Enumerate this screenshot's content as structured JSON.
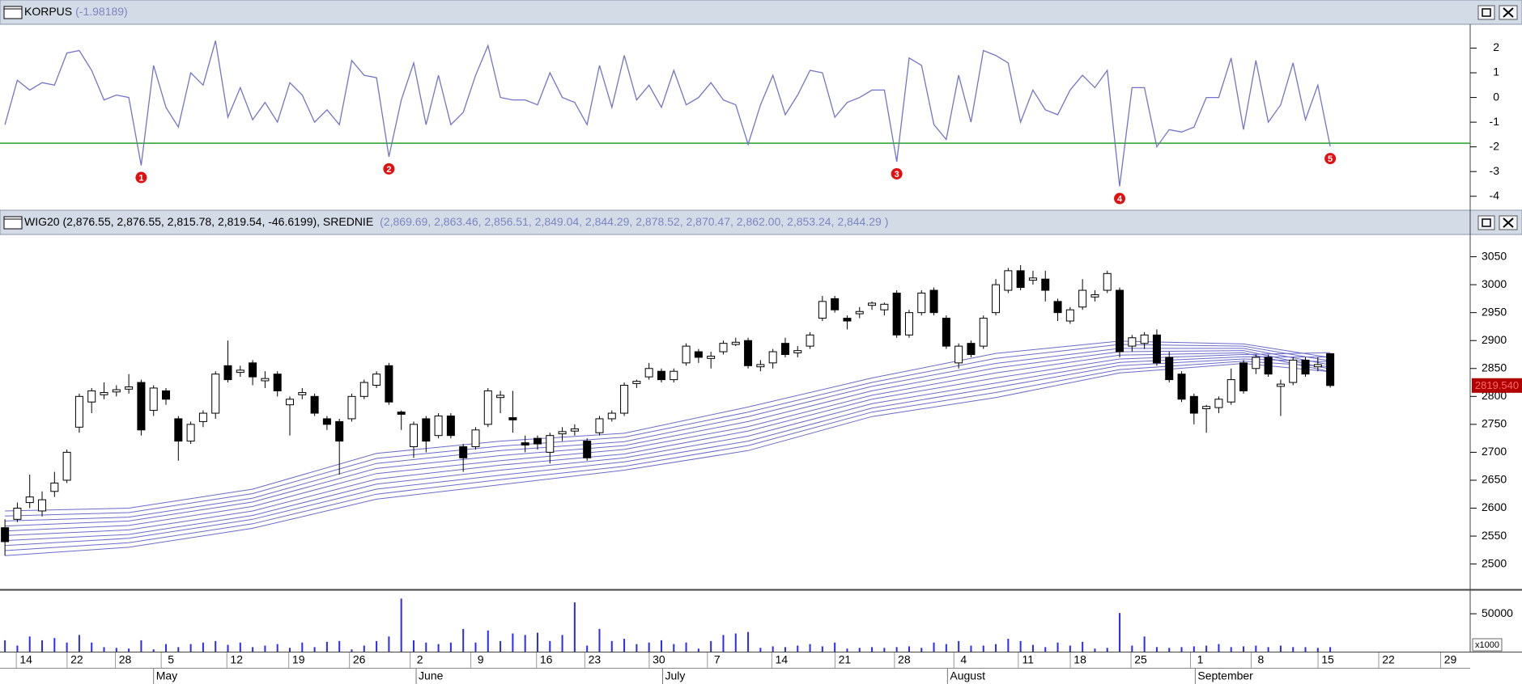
{
  "chart_data": [
    {
      "type": "line",
      "title": "KORPUS",
      "subtitle": "(-1.98189)",
      "color": "#7373cc",
      "xlim": [
        -0.4,
        118.3
      ],
      "ylim": [
        -4.5,
        2.9
      ],
      "yticks": [
        -4,
        -3,
        -2,
        -1,
        0,
        1,
        2
      ],
      "threshold": -1.85,
      "threshold_color": "#22a022",
      "values": [
        -1.1,
        0.7,
        0.3,
        0.6,
        0.5,
        1.8,
        1.9,
        1.1,
        -0.1,
        0.1,
        0.0,
        -2.75,
        1.3,
        -0.4,
        -1.2,
        1.0,
        0.5,
        2.3,
        -0.8,
        0.4,
        -0.9,
        -0.2,
        -1.0,
        0.6,
        0.1,
        -1.0,
        -0.5,
        -1.1,
        1.5,
        0.9,
        0.8,
        -2.4,
        -0.1,
        1.4,
        -1.1,
        0.9,
        -1.1,
        -0.6,
        0.9,
        2.1,
        0.0,
        -0.1,
        -0.1,
        -0.3,
        1.0,
        0.0,
        -0.2,
        -1.1,
        1.3,
        -0.4,
        1.7,
        -0.1,
        0.5,
        -0.4,
        1.1,
        -0.3,
        0.0,
        0.6,
        -0.1,
        -0.3,
        -1.9,
        -0.3,
        0.9,
        -0.7,
        0.1,
        1.1,
        1.0,
        -0.8,
        -0.2,
        0.0,
        0.3,
        0.3,
        -2.6,
        1.6,
        1.3,
        -1.1,
        -1.7,
        0.9,
        -1.0,
        1.9,
        1.7,
        1.4,
        -1.0,
        0.3,
        -0.5,
        -0.7,
        0.3,
        0.9,
        0.4,
        1.1,
        -3.6,
        0.4,
        0.4,
        -2.0,
        -1.3,
        -1.4,
        -1.2,
        0.0,
        0.0,
        1.6,
        -1.3,
        1.5,
        -1.0,
        -0.3,
        1.4,
        -0.9,
        0.5,
        -1.98189
      ],
      "annotations": [
        {
          "x": 11,
          "text": "1"
        },
        {
          "x": 31,
          "text": "2"
        },
        {
          "x": 72,
          "text": "3"
        },
        {
          "x": 90,
          "text": "4"
        },
        {
          "x": 107,
          "text": "5"
        }
      ]
    },
    {
      "type": "candlestick",
      "title": "WIG20 (2,876.55, 2,876.55, 2,815.78, 2,819.54, -46.6199), SREDNIE",
      "subtitle": "(2,869.69, 2,863.46, 2,856.51, 2,849.04, 2,844.29, 2,878.52, 2,870.47, 2,862.00, 2,853.24, 2,844.29 )",
      "xlim": [
        -0.4,
        118.3
      ],
      "ylim": [
        2456,
        3087
      ],
      "yticks": [
        2500,
        2550,
        2600,
        2650,
        2700,
        2750,
        2800,
        2850,
        2900,
        2950,
        3000,
        3050
      ],
      "open": [
        2565,
        2580,
        2610,
        2595,
        2630,
        2650,
        2745,
        2790,
        2803,
        2808,
        2813,
        2825,
        2775,
        2810,
        2760,
        2720,
        2755,
        2770,
        2855,
        2843,
        2860,
        2828,
        2840,
        2785,
        2803,
        2800,
        2760,
        2755,
        2760,
        2800,
        2820,
        2855,
        2772,
        2710,
        2760,
        2730,
        2765,
        2710,
        2710,
        2750,
        2798,
        2762,
        2717,
        2725,
        2700,
        2733,
        2738,
        2720,
        2735,
        2760,
        2770,
        2823,
        2835,
        2845,
        2830,
        2860,
        2880,
        2868,
        2880,
        2893,
        2900,
        2853,
        2860,
        2895,
        2878,
        2890,
        2940,
        2975,
        2940,
        2948,
        2963,
        2955,
        2985,
        2910,
        2950,
        2990,
        2940,
        2860,
        2895,
        2890,
        2950,
        2990,
        3025,
        3008,
        3010,
        2970,
        2935,
        2960,
        2978,
        2990,
        2990,
        2890,
        2895,
        2910,
        2870,
        2840,
        2800,
        2778,
        2780,
        2790,
        2860,
        2850,
        2870,
        2818,
        2825,
        2865,
        2853,
        2876.55
      ],
      "high": [
        2580,
        2610,
        2660,
        2630,
        2665,
        2705,
        2805,
        2815,
        2825,
        2820,
        2840,
        2830,
        2820,
        2815,
        2765,
        2755,
        2775,
        2845,
        2900,
        2855,
        2865,
        2845,
        2845,
        2800,
        2815,
        2805,
        2765,
        2760,
        2805,
        2830,
        2845,
        2860,
        2775,
        2755,
        2765,
        2770,
        2770,
        2715,
        2745,
        2815,
        2810,
        2810,
        2730,
        2730,
        2735,
        2745,
        2750,
        2725,
        2765,
        2775,
        2825,
        2830,
        2860,
        2850,
        2850,
        2895,
        2885,
        2880,
        2900,
        2905,
        2905,
        2865,
        2885,
        2905,
        2890,
        2915,
        2980,
        2980,
        2945,
        2960,
        2970,
        2968,
        2990,
        2955,
        2990,
        2995,
        2945,
        2895,
        2900,
        2945,
        3010,
        3030,
        3035,
        3025,
        3025,
        2975,
        2960,
        3010,
        2990,
        3025,
        2995,
        2910,
        2915,
        2920,
        2880,
        2845,
        2805,
        2785,
        2800,
        2850,
        2865,
        2875,
        2875,
        2830,
        2870,
        2870,
        2870,
        2876.55
      ],
      "low": [
        2515,
        2575,
        2600,
        2585,
        2620,
        2645,
        2735,
        2770,
        2795,
        2800,
        2805,
        2730,
        2765,
        2785,
        2685,
        2715,
        2745,
        2760,
        2825,
        2835,
        2820,
        2815,
        2800,
        2730,
        2795,
        2765,
        2740,
        2660,
        2755,
        2795,
        2815,
        2785,
        2740,
        2690,
        2700,
        2725,
        2725,
        2665,
        2705,
        2745,
        2770,
        2735,
        2700,
        2705,
        2680,
        2720,
        2730,
        2685,
        2730,
        2755,
        2765,
        2815,
        2830,
        2825,
        2825,
        2855,
        2860,
        2850,
        2875,
        2890,
        2850,
        2845,
        2850,
        2870,
        2870,
        2885,
        2935,
        2950,
        2920,
        2940,
        2955,
        2945,
        2905,
        2905,
        2945,
        2945,
        2885,
        2850,
        2870,
        2885,
        2945,
        2985,
        2990,
        3000,
        2970,
        2935,
        2930,
        2955,
        2970,
        2985,
        2870,
        2880,
        2885,
        2855,
        2825,
        2790,
        2750,
        2735,
        2770,
        2785,
        2805,
        2840,
        2835,
        2765,
        2820,
        2835,
        2845,
        2815.78
      ],
      "close": [
        2540,
        2600,
        2620,
        2615,
        2645,
        2700,
        2800,
        2810,
        2807,
        2812,
        2817,
        2740,
        2815,
        2795,
        2720,
        2750,
        2770,
        2840,
        2830,
        2847,
        2835,
        2832,
        2810,
        2795,
        2807,
        2770,
        2750,
        2720,
        2800,
        2825,
        2840,
        2790,
        2768,
        2750,
        2720,
        2765,
        2730,
        2690,
        2740,
        2810,
        2802,
        2758,
        2713,
        2715,
        2730,
        2737,
        2742,
        2690,
        2760,
        2770,
        2820,
        2827,
        2850,
        2830,
        2845,
        2890,
        2870,
        2872,
        2895,
        2897,
        2855,
        2857,
        2880,
        2875,
        2882,
        2910,
        2970,
        2955,
        2935,
        2952,
        2967,
        2965,
        2910,
        2950,
        2985,
        2950,
        2890,
        2890,
        2875,
        2940,
        3000,
        3025,
        2995,
        3012,
        2990,
        2950,
        2955,
        2990,
        2982,
        3020,
        2880,
        2905,
        2910,
        2860,
        2830,
        2795,
        2770,
        2782,
        2795,
        2830,
        2810,
        2870,
        2840,
        2822,
        2865,
        2840,
        2857,
        2819.54
      ],
      "ma_x": [
        0,
        10,
        20,
        30,
        40,
        50,
        60,
        70,
        80,
        90,
        100,
        107
      ],
      "ma_color": "#6a6acc",
      "series": [
        {
          "values": [
            2595,
            2600,
            2634,
            2698,
            2720,
            2734,
            2781,
            2833,
            2877,
            2899,
            2894,
            2869.69
          ]
        },
        {
          "values": [
            2586,
            2592,
            2626,
            2689,
            2711,
            2727,
            2772,
            2825,
            2868,
            2893,
            2890,
            2863.46
          ]
        },
        {
          "values": [
            2577,
            2584,
            2618,
            2680,
            2703,
            2719,
            2764,
            2818,
            2859,
            2886,
            2886,
            2856.51
          ]
        },
        {
          "values": [
            2568,
            2577,
            2611,
            2671,
            2694,
            2712,
            2755,
            2810,
            2851,
            2880,
            2882,
            2849.04
          ]
        },
        {
          "values": [
            2559,
            2569,
            2603,
            2662,
            2685,
            2705,
            2746,
            2802,
            2842,
            2874,
            2878,
            2844.29
          ]
        },
        {
          "values": [
            2551,
            2561,
            2595,
            2652,
            2677,
            2697,
            2738,
            2795,
            2833,
            2867,
            2875,
            2878.52
          ]
        },
        {
          "values": [
            2542,
            2553,
            2587,
            2643,
            2668,
            2690,
            2729,
            2787,
            2824,
            2861,
            2871,
            2870.47
          ]
        },
        {
          "values": [
            2533,
            2546,
            2580,
            2634,
            2659,
            2683,
            2720,
            2779,
            2816,
            2855,
            2867,
            2862
          ]
        },
        {
          "values": [
            2524,
            2538,
            2572,
            2625,
            2651,
            2675,
            2712,
            2772,
            2807,
            2848,
            2863,
            2853.24
          ]
        },
        {
          "values": [
            2515,
            2530,
            2564,
            2616,
            2642,
            2668,
            2703,
            2764,
            2798,
            2842,
            2859,
            2844.29
          ]
        }
      ],
      "price_marker": {
        "value": 2819.54,
        "label": "2819.540"
      }
    },
    {
      "type": "bar",
      "color": "#2a2aff",
      "unit_label": "x1000",
      "xlim": [
        -0.4,
        118.3
      ],
      "ylim": [
        0,
        80000
      ],
      "yticks": [
        50000
      ],
      "values": [
        15000,
        8000,
        20000,
        15000,
        18000,
        12000,
        22000,
        12000,
        6000,
        5000,
        4000,
        15000,
        3000,
        10000,
        6000,
        10000,
        12000,
        14000,
        9000,
        12000,
        6000,
        8000,
        10000,
        5000,
        12000,
        6000,
        13000,
        14000,
        3000,
        8000,
        14000,
        20000,
        70000,
        15000,
        12000,
        10000,
        12000,
        30000,
        12000,
        28000,
        14000,
        24000,
        22000,
        25000,
        14000,
        22000,
        65000,
        8000,
        30000,
        14000,
        17000,
        10000,
        12000,
        15000,
        10000,
        12000,
        4000,
        14000,
        22000,
        24000,
        26000,
        5000,
        7000,
        6000,
        8000,
        10000,
        7000,
        12000,
        4000,
        5000,
        6000,
        5000,
        6000,
        7000,
        5000,
        12000,
        10000,
        14000,
        8000,
        8000,
        10000,
        17000,
        14000,
        9000,
        6000,
        12000,
        8000,
        13000,
        4000,
        5000,
        51000,
        8000,
        20000,
        6000,
        5000,
        6000,
        7000,
        8000,
        10000,
        6000,
        7000,
        8000,
        6000,
        8000,
        6000,
        6000,
        5000,
        6000
      ],
      "xticks": [
        {
          "value": 1.7,
          "label": "14"
        },
        {
          "value": 5.8,
          "label": "22"
        },
        {
          "value": 9.7,
          "label": "28"
        },
        {
          "value": 13.4,
          "label": "5"
        },
        {
          "value": 18.7,
          "label": "12"
        },
        {
          "value": 23.7,
          "label": "19"
        },
        {
          "value": 28.6,
          "label": "26"
        },
        {
          "value": 33.5,
          "label": "2"
        },
        {
          "value": 38.4,
          "label": "9"
        },
        {
          "value": 43.7,
          "label": "16"
        },
        {
          "value": 47.6,
          "label": "23"
        },
        {
          "value": 52.8,
          "label": "30"
        },
        {
          "value": 57.5,
          "label": "7"
        },
        {
          "value": 62.7,
          "label": "14"
        },
        {
          "value": 67.8,
          "label": "21"
        },
        {
          "value": 72.6,
          "label": "28"
        },
        {
          "value": 77.4,
          "label": "4"
        },
        {
          "value": 82.6,
          "label": "11"
        },
        {
          "value": 86.8,
          "label": "18"
        },
        {
          "value": 91.7,
          "label": "25"
        },
        {
          "value": 96.5,
          "label": "1"
        },
        {
          "value": 101.4,
          "label": "8"
        },
        {
          "value": 106.8,
          "label": "15"
        },
        {
          "value": 111.7,
          "label": "22"
        },
        {
          "value": 116.7,
          "label": "29"
        }
      ],
      "month_ticks": [
        {
          "value": 12.0,
          "label": "May"
        },
        {
          "value": 33.2,
          "label": "June"
        },
        {
          "value": 53.1,
          "label": "July"
        },
        {
          "value": 76.1,
          "label": "August"
        },
        {
          "value": 96.1,
          "label": "September"
        }
      ]
    }
  ]
}
